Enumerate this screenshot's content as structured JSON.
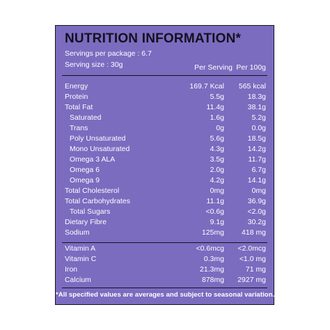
{
  "panel": {
    "title": "NUTRITION INFORMATION*",
    "servings_per_package": "Servings per package : 6.7",
    "serving_size": "Serving  size : 30g",
    "col_per_serving": "Per Serving",
    "col_per_100g": "Per 100g",
    "colors": {
      "background": "#7b6cc0",
      "text": "#ffffff",
      "title_and_rules": "#14121f"
    }
  },
  "nutrients": [
    {
      "name": "Energy",
      "per_serving": "169.7 Kcal",
      "per_100g": "565 kcal"
    },
    {
      "name": "Protein",
      "per_serving": "5.5g",
      "per_100g": "18.3g"
    },
    {
      "name": "Total Fat",
      "per_serving": "11.4g",
      "per_100g": "38.1g"
    },
    {
      "name": "Saturated",
      "per_serving": "1.6g",
      "per_100g": "5.2g"
    },
    {
      "name": "Trans",
      "per_serving": "0g",
      "per_100g": "0.0g"
    },
    {
      "name": "Poly Unsaturated",
      "per_serving": "5.6g",
      "per_100g": "18.5g"
    },
    {
      "name": "Mono Unsaturated",
      "per_serving": "4.3g",
      "per_100g": "14.2g"
    },
    {
      "name": "Omega 3 ALA",
      "per_serving": "3.5g",
      "per_100g": "11.7g"
    },
    {
      "name": "Omega 6",
      "per_serving": "2.0g",
      "per_100g": "6.7g"
    },
    {
      "name": "Omega 9",
      "per_serving": "4.2g",
      "per_100g": "14.1g"
    },
    {
      "name": "Total Cholesterol",
      "per_serving": "0mg",
      "per_100g": "0mg"
    },
    {
      "name": "Total Carbohydrates",
      "per_serving": "11.1g",
      "per_100g": "36.9g"
    },
    {
      "name": "Total Sugars",
      "per_serving": "<0.6g",
      "per_100g": "<2.0g"
    },
    {
      "name": "Dietary Fibre",
      "per_serving": "9.1g",
      "per_100g": "30.2g"
    },
    {
      "name": "Sodium",
      "per_serving": "125mg",
      "per_100g": "418 mg"
    }
  ],
  "vitamins_minerals": [
    {
      "name": "Vitamin A",
      "per_serving": "<0.6mcg",
      "per_100g": "<2.0mcg"
    },
    {
      "name": "Vitamin C",
      "per_serving": "0.3mg",
      "per_100g": "<1.0 mg"
    },
    {
      "name": "Iron",
      "per_serving": "21.3mg",
      "per_100g": "71 mg"
    },
    {
      "name": "Calcium",
      "per_serving": "878mg",
      "per_100g": "2927 mg"
    }
  ],
  "footnote": "*All specified values are averages and subject to seasonal variation."
}
